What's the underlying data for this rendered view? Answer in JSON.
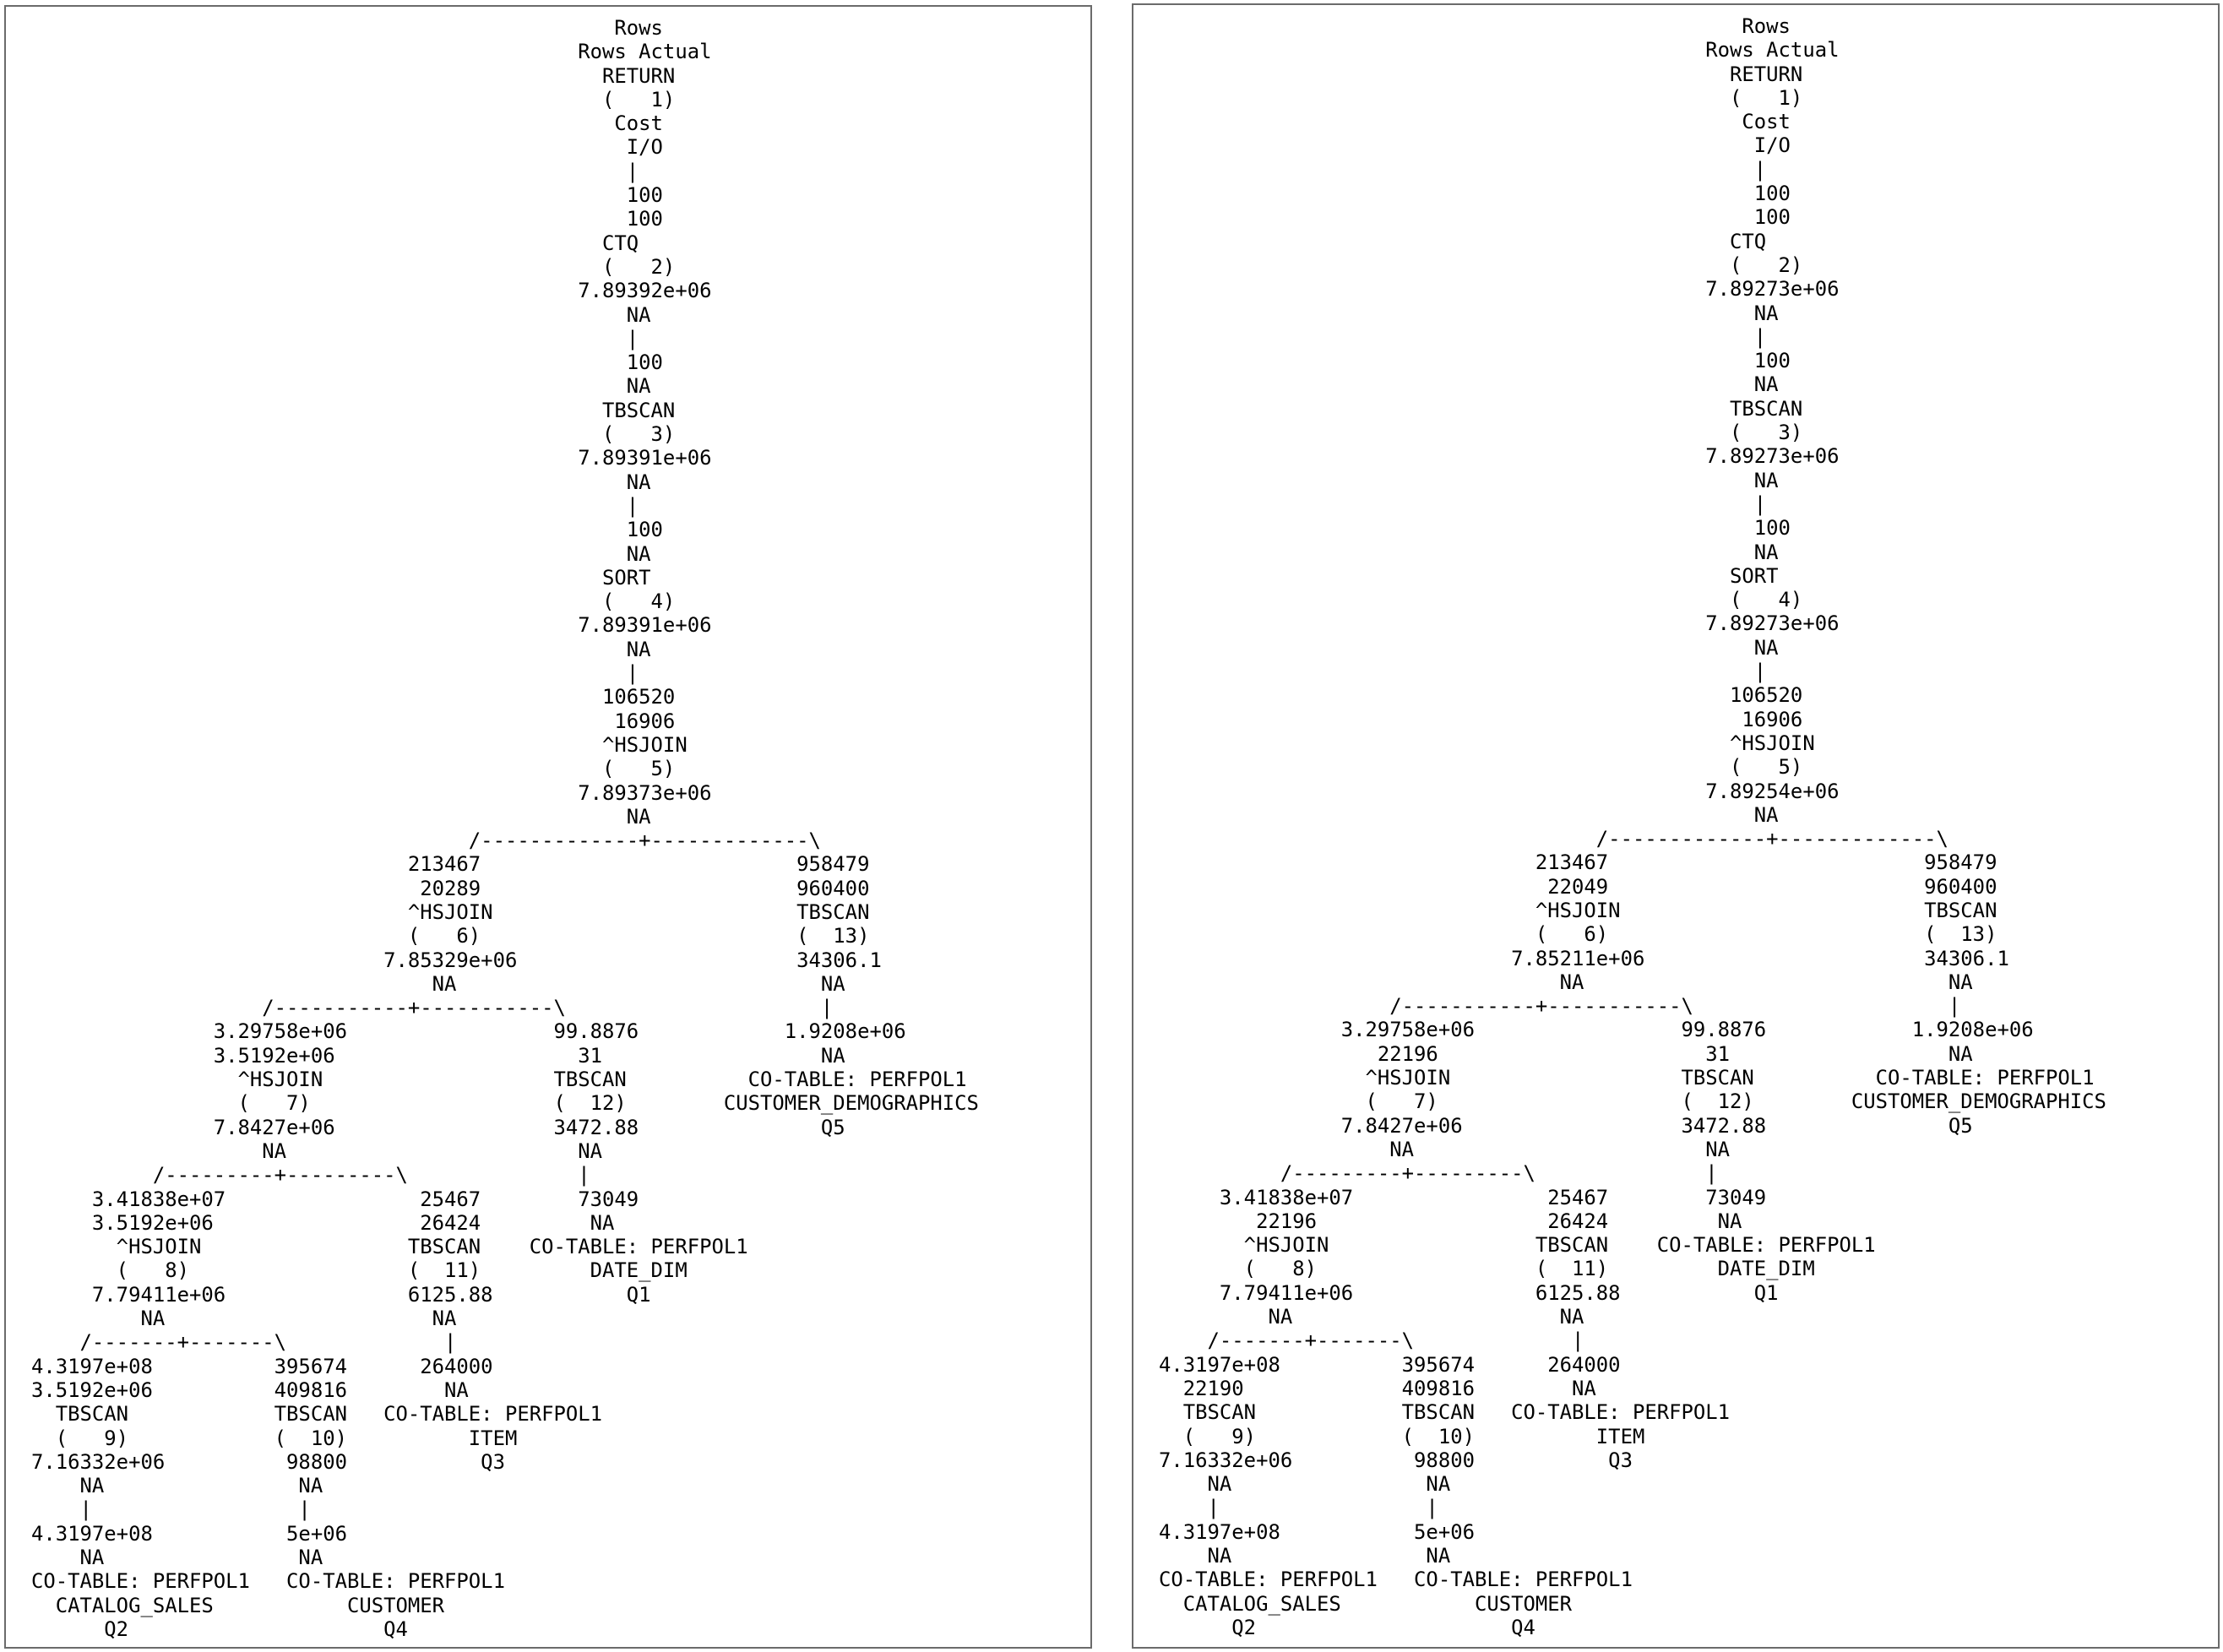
{
  "panels": [
    {
      "lines": [
        "                                                Rows",
        "                                             Rows Actual",
        "                                               RETURN",
        "                                               (   1)",
        "                                                Cost",
        "                                                 I/O",
        "                                                 |",
        "                                                 100",
        "                                                 100",
        "                                               CTQ",
        "                                               (   2)",
        "                                             7.89392e+06",
        "                                                 NA",
        "                                                 |",
        "                                                 100",
        "                                                 NA",
        "                                               TBSCAN",
        "                                               (   3)",
        "                                             7.89391e+06",
        "                                                 NA",
        "                                                 |",
        "                                                 100",
        "                                                 NA",
        "                                               SORT",
        "                                               (   4)",
        "                                             7.89391e+06",
        "                                                 NA",
        "                                                 |",
        "                                               106520",
        "                                                16906",
        "                                               ^HSJOIN",
        "                                               (   5)",
        "                                             7.89373e+06",
        "                                                 NA",
        "                                    /-------------+-------------\\",
        "                               213467                          958479",
        "                                20289                          960400",
        "                               ^HSJOIN                         TBSCAN",
        "                               (   6)                          (  13)",
        "                             7.85329e+06                       34306.1",
        "                                 NA                              NA",
        "                   /-----------+-----------\\                     |",
        "               3.29758e+06                 99.8876            1.9208e+06",
        "               3.5192e+06                    31                  NA",
        "                 ^HSJOIN                   TBSCAN          CO-TABLE: PERFPOL1",
        "                 (   7)                    (  12)        CUSTOMER_DEMOGRAPHICS",
        "               7.8427e+06                  3472.88               Q5",
        "                   NA                        NA",
        "          /---------+---------\\              |",
        "     3.41838e+07                25467        73049",
        "     3.5192e+06                 26424         NA",
        "       ^HSJOIN                 TBSCAN    CO-TABLE: PERFPOL1",
        "       (   8)                  (  11)         DATE_DIM",
        "     7.79411e+06               6125.88           Q1",
        "         NA                      NA",
        "    /-------+-------\\             |",
        "4.3197e+08          395674      264000",
        "3.5192e+06          409816        NA",
        "  TBSCAN            TBSCAN   CO-TABLE: PERFPOL1",
        "  (   9)            (  10)          ITEM",
        "7.16332e+06          98800           Q3",
        "    NA                NA",
        "    |                 |",
        "4.3197e+08           5e+06",
        "    NA                NA",
        "CO-TABLE: PERFPOL1   CO-TABLE: PERFPOL1",
        "  CATALOG_SALES           CUSTOMER",
        "      Q2                     Q4"
      ]
    },
    {
      "lines": [
        "                                                Rows",
        "                                             Rows Actual",
        "                                               RETURN",
        "                                               (   1)",
        "                                                Cost",
        "                                                 I/O",
        "                                                 |",
        "                                                 100",
        "                                                 100",
        "                                               CTQ",
        "                                               (   2)",
        "                                             7.89273e+06",
        "                                                 NA",
        "                                                 |",
        "                                                 100",
        "                                                 NA",
        "                                               TBSCAN",
        "                                               (   3)",
        "                                             7.89273e+06",
        "                                                 NA",
        "                                                 |",
        "                                                 100",
        "                                                 NA",
        "                                               SORT",
        "                                               (   4)",
        "                                             7.89273e+06",
        "                                                 NA",
        "                                                 |",
        "                                               106520",
        "                                                16906",
        "                                               ^HSJOIN",
        "                                               (   5)",
        "                                             7.89254e+06",
        "                                                 NA",
        "                                    /-------------+-------------\\",
        "                               213467                          958479",
        "                                22049                          960400",
        "                               ^HSJOIN                         TBSCAN",
        "                               (   6)                          (  13)",
        "                             7.85211e+06                       34306.1",
        "                                 NA                              NA",
        "                   /-----------+-----------\\                     |",
        "               3.29758e+06                 99.8876            1.9208e+06",
        "                  22196                      31                  NA",
        "                 ^HSJOIN                   TBSCAN          CO-TABLE: PERFPOL1",
        "                 (   7)                    (  12)        CUSTOMER_DEMOGRAPHICS",
        "               7.8427e+06                  3472.88               Q5",
        "                   NA                        NA",
        "          /---------+---------\\              |",
        "     3.41838e+07                25467        73049",
        "        22196                   26424         NA",
        "       ^HSJOIN                 TBSCAN    CO-TABLE: PERFPOL1",
        "       (   8)                  (  11)         DATE_DIM",
        "     7.79411e+06               6125.88           Q1",
        "         NA                      NA",
        "    /-------+-------\\             |",
        "4.3197e+08          395674      264000",
        "  22190             409816        NA",
        "  TBSCAN            TBSCAN   CO-TABLE: PERFPOL1",
        "  (   9)            (  10)          ITEM",
        "7.16332e+06          98800           Q3",
        "    NA                NA",
        "    |                 |",
        "4.3197e+08           5e+06",
        "    NA                NA",
        "CO-TABLE: PERFPOL1   CO-TABLE: PERFPOL1",
        "  CATALOG_SALES           CUSTOMER",
        "      Q2                     Q4"
      ]
    }
  ]
}
